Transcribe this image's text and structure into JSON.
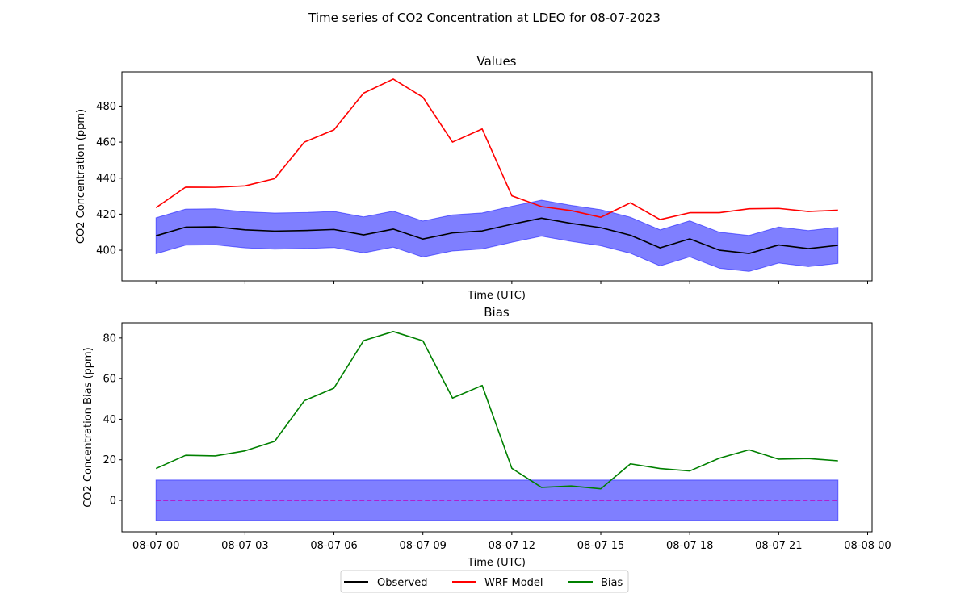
{
  "figure": {
    "suptitle": "Time series of CO2 Concentration at LDEO for 08-07-2023"
  },
  "colors": {
    "observed": "#000000",
    "model": "#ff0000",
    "bias": "#008000",
    "band": "#0000ff",
    "zero_line": "#bf00bf"
  },
  "chart_data": [
    {
      "type": "line",
      "title": "Values",
      "xlabel": "Time (UTC)",
      "ylabel": "CO2 Concentration (ppm)",
      "x": [
        "08-07 00:00",
        "08-07 01:00",
        "08-07 02:00",
        "08-07 03:00",
        "08-07 04:00",
        "08-07 05:00",
        "08-07 06:00",
        "08-07 07:00",
        "08-07 08:00",
        "08-07 09:00",
        "08-07 10:00",
        "08-07 11:00",
        "08-07 12:00",
        "08-07 13:00",
        "08-07 14:00",
        "08-07 15:00",
        "08-07 16:00",
        "08-07 17:00",
        "08-07 18:00",
        "08-07 19:00",
        "08-07 20:00",
        "08-07 21:00",
        "08-07 22:00",
        "08-07 23:00"
      ],
      "xlim": [
        -1.15,
        24.15
      ],
      "ylim": [
        383,
        499
      ],
      "yticks": [
        400,
        420,
        440,
        460,
        480
      ],
      "xticks": [
        0,
        3,
        6,
        9,
        12,
        15,
        18,
        21,
        24
      ],
      "xtick_labels_visible": false,
      "series": [
        {
          "name": "Observed",
          "key": "observed",
          "values": [
            408,
            412.8,
            413,
            411.3,
            410.6,
            410.9,
            411.5,
            408.5,
            411.7,
            406.2,
            409.6,
            410.7,
            414.4,
            417.8,
            414.9,
            412.5,
            408.3,
            401.3,
            406.3,
            400,
            398.2,
            402.9,
            400.9,
            402.7
          ]
        },
        {
          "name": "WRF Model",
          "key": "model",
          "values": [
            423.6,
            435,
            434.9,
            435.7,
            439.7,
            460,
            466.8,
            487.2,
            495,
            484.9,
            460,
            467.3,
            430.2,
            424.2,
            422,
            418.3,
            426.3,
            417,
            420.8,
            420.8,
            423,
            423.2,
            421.5,
            422.2
          ]
        }
      ],
      "band": {
        "around": "Observed",
        "half_width": 10,
        "label": ""
      }
    },
    {
      "type": "line",
      "title": "Bias",
      "xlabel": "Time (UTC)",
      "ylabel": "CO2 Concentration Bias (ppm)",
      "x": [
        "08-07 00:00",
        "08-07 01:00",
        "08-07 02:00",
        "08-07 03:00",
        "08-07 04:00",
        "08-07 05:00",
        "08-07 06:00",
        "08-07 07:00",
        "08-07 08:00",
        "08-07 09:00",
        "08-07 10:00",
        "08-07 11:00",
        "08-07 12:00",
        "08-07 13:00",
        "08-07 14:00",
        "08-07 15:00",
        "08-07 16:00",
        "08-07 17:00",
        "08-07 18:00",
        "08-07 19:00",
        "08-07 20:00",
        "08-07 21:00",
        "08-07 22:00",
        "08-07 23:00"
      ],
      "xlim": [
        -1.15,
        24.15
      ],
      "ylim": [
        -15.5,
        87.5
      ],
      "yticks": [
        0,
        20,
        40,
        60,
        80
      ],
      "xticks": [
        0,
        3,
        6,
        9,
        12,
        15,
        18,
        21,
        24
      ],
      "xtick_labels": [
        "08-07 00",
        "08-07 03",
        "08-07 06",
        "08-07 09",
        "08-07 12",
        "08-07 15",
        "08-07 18",
        "08-07 21",
        "08-08 00"
      ],
      "series": [
        {
          "name": "Bias",
          "key": "bias",
          "values": [
            15.7,
            22.2,
            21.9,
            24.4,
            29.1,
            49.1,
            55.3,
            78.7,
            83.2,
            78.6,
            50.4,
            56.6,
            15.8,
            6.4,
            7.1,
            5.7,
            18,
            15.7,
            14.5,
            20.8,
            24.9,
            20.3,
            20.6,
            19.5
          ]
        }
      ],
      "band": {
        "lower": -10,
        "upper": 10
      },
      "reference_line": {
        "y": 0,
        "style": "dashed"
      }
    }
  ],
  "legend": {
    "placement": "bottom-center",
    "entries": [
      {
        "label": "Observed",
        "key": "observed"
      },
      {
        "label": "WRF Model",
        "key": "model"
      },
      {
        "label": "Bias",
        "key": "bias"
      }
    ]
  }
}
